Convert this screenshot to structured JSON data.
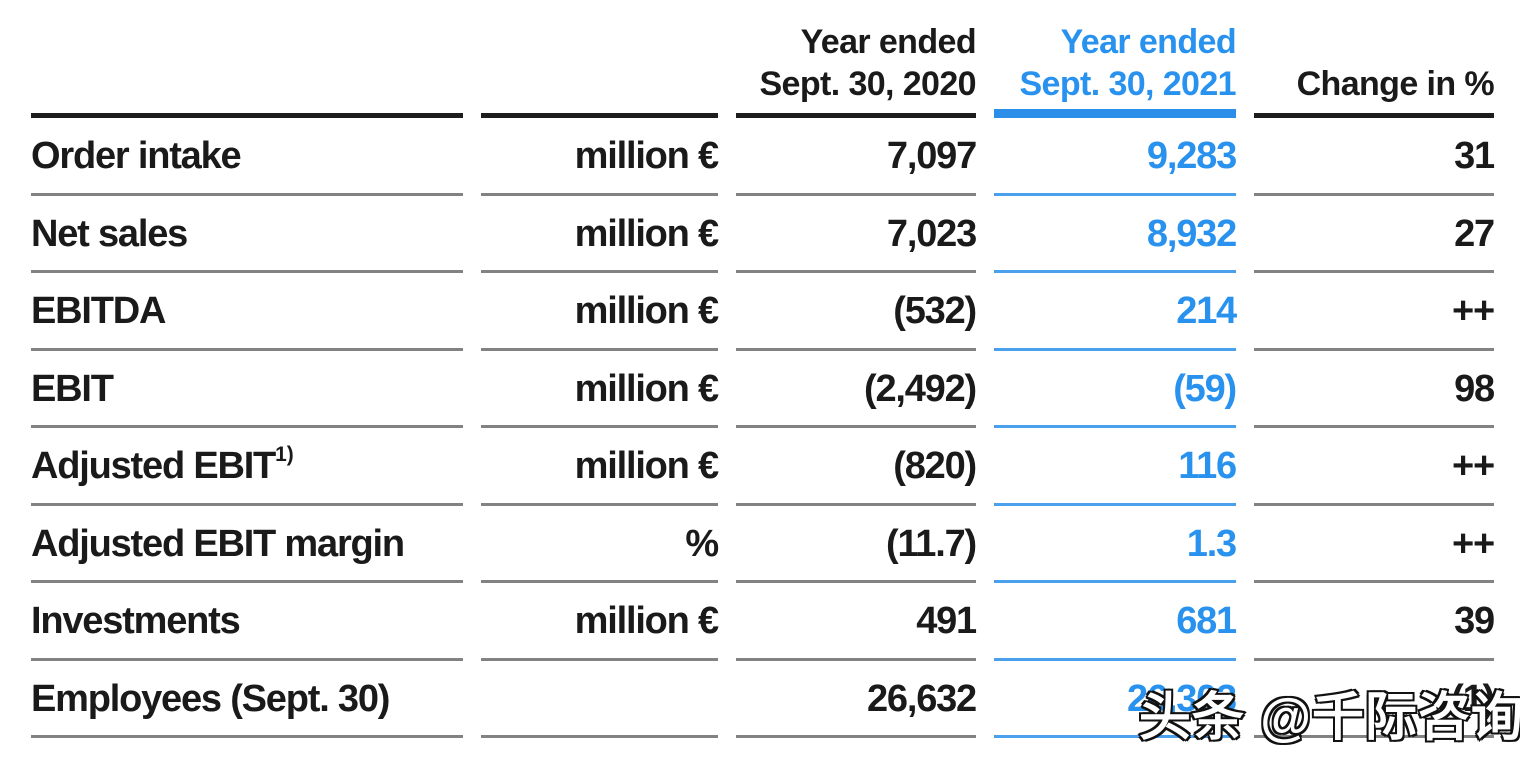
{
  "table": {
    "header": {
      "col_2020_line1": "Year ended",
      "col_2020_line2": "Sept. 30, 2020",
      "col_2021_line1": "Year ended",
      "col_2021_line2": "Sept. 30, 2021",
      "col_change": "Change in %"
    },
    "rows": [
      {
        "label": "Order intake",
        "label_sup": "",
        "unit": "million €",
        "y2020": "7,097",
        "y2021": "9,283",
        "change": "31"
      },
      {
        "label": "Net sales",
        "label_sup": "",
        "unit": "million €",
        "y2020": "7,023",
        "y2021": "8,932",
        "change": "27"
      },
      {
        "label": "EBITDA",
        "label_sup": "",
        "unit": "million €",
        "y2020": "(532)",
        "y2021": "214",
        "change": "++"
      },
      {
        "label": "EBIT",
        "label_sup": "",
        "unit": "million €",
        "y2020": "(2,492)",
        "y2021": "(59)",
        "change": "98"
      },
      {
        "label": "Adjusted EBIT",
        "label_sup": "1)",
        "unit": "million €",
        "y2020": "(820)",
        "y2021": "116",
        "change": "++"
      },
      {
        "label": "Adjusted EBIT margin",
        "label_sup": "",
        "unit": "%",
        "y2020": "(11.7)",
        "y2021": "1.3",
        "change": "++"
      },
      {
        "label": "Investments",
        "label_sup": "",
        "unit": "million €",
        "y2020": "491",
        "y2021": "681",
        "change": "39"
      },
      {
        "label": "Employees (Sept. 30)",
        "label_sup": "",
        "unit": "",
        "y2020": "26,632",
        "y2021": "26,303",
        "change": "(1)"
      }
    ]
  },
  "watermark": {
    "text": "头条 @千际咨询"
  },
  "colors": {
    "accent_blue_text": "#2892ee",
    "accent_blue_header_rule": "#2b8fe9",
    "accent_blue_row_rule": "#4aa0ec",
    "text_black": "#1a1a1a",
    "header_rule_black": "#1d1d1d",
    "row_rule_gray": "#828282"
  }
}
